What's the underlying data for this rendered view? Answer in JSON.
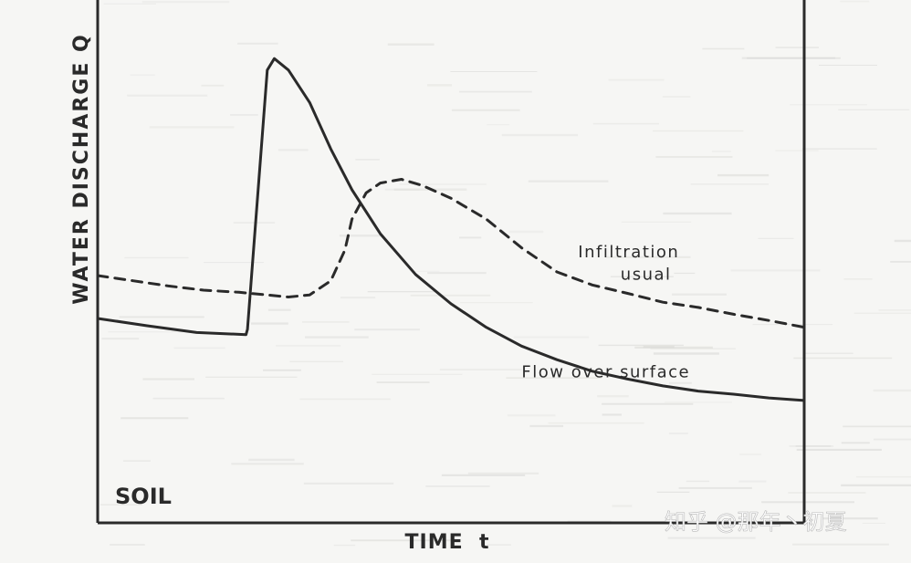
{
  "chart_data": {
    "type": "line",
    "title": "",
    "xlabel": "TIME  t",
    "ylabel": "WATER  DISCHARGE  Q",
    "xlim": [
      0,
      100
    ],
    "ylim": [
      0,
      100
    ],
    "grid": false,
    "panel_label": "SOIL",
    "series": [
      {
        "name": "Flow over surface",
        "style": "solid",
        "points": [
          [
            0,
            39.1
          ],
          [
            7,
            37.7
          ],
          [
            14,
            36.4
          ],
          [
            21,
            36.0
          ],
          [
            21.2,
            37.0
          ],
          [
            24,
            86.6
          ],
          [
            25,
            88.8
          ],
          [
            27,
            86.6
          ],
          [
            30,
            80.4
          ],
          [
            33,
            71.5
          ],
          [
            36,
            63.7
          ],
          [
            40,
            55.3
          ],
          [
            45,
            47.5
          ],
          [
            50,
            41.9
          ],
          [
            55,
            37.4
          ],
          [
            60,
            33.8
          ],
          [
            65,
            31.2
          ],
          [
            70,
            29.0
          ],
          [
            75,
            27.5
          ],
          [
            80,
            26.2
          ],
          [
            85,
            25.2
          ],
          [
            90,
            24.6
          ],
          [
            95,
            23.9
          ],
          [
            100,
            23.4
          ]
        ],
        "color": "#2a2a2a"
      },
      {
        "name": "Infiltration usual",
        "style": "dashed",
        "points": [
          [
            0,
            47.3
          ],
          [
            5,
            46.3
          ],
          [
            10,
            45.3
          ],
          [
            15,
            44.5
          ],
          [
            20,
            44.1
          ],
          [
            27,
            43.2
          ],
          [
            30,
            43.6
          ],
          [
            33,
            46.3
          ],
          [
            35,
            52.2
          ],
          [
            36,
            58.1
          ],
          [
            38,
            63.1
          ],
          [
            40,
            65.0
          ],
          [
            43,
            65.7
          ],
          [
            46,
            64.5
          ],
          [
            50,
            62.1
          ],
          [
            55,
            58.1
          ],
          [
            60,
            52.6
          ],
          [
            65,
            48.0
          ],
          [
            70,
            45.5
          ],
          [
            75,
            43.9
          ],
          [
            80,
            42.2
          ],
          [
            85,
            41.2
          ],
          [
            90,
            39.9
          ],
          [
            95,
            38.7
          ],
          [
            100,
            37.4
          ]
        ],
        "color": "#2a2a2a"
      }
    ],
    "annotations": [
      {
        "id": "infiltration-1",
        "text": "Infiltration",
        "x": 68,
        "y": 50.8
      },
      {
        "id": "infiltration-2",
        "text": "usual",
        "x": 74,
        "y": 46.5
      },
      {
        "id": "flow-surface",
        "text": "Flow  over  surface",
        "x": 60,
        "y": 27.8
      }
    ]
  },
  "watermark": "知乎 @那年丶初夏"
}
